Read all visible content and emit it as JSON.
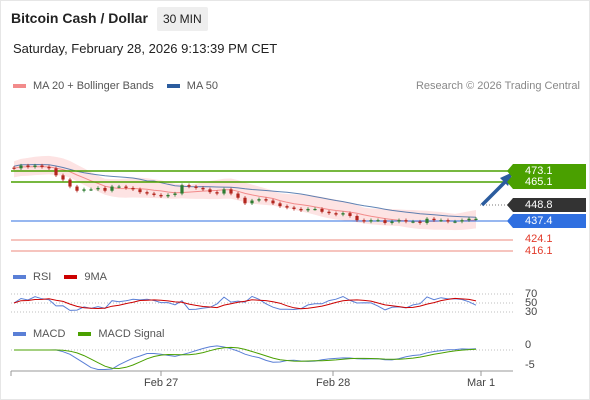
{
  "header": {
    "title": "Bitcoin Cash / Dollar",
    "interval": "30 MIN",
    "datetime": "Saturday, February 28, 2026 9:13:39 PM CET"
  },
  "legend_main": [
    {
      "label": "MA 20 + Bollinger Bands",
      "color": "#f28b8b"
    },
    {
      "label": "MA 50",
      "color": "#2b5c9e"
    }
  ],
  "copyright": "Research © 2026 Trading Central",
  "levels": {
    "resistance_1": {
      "value": "473.1",
      "color": "#4aa000"
    },
    "resistance_2": {
      "value": "465.1",
      "color": "#4aa000"
    },
    "current": {
      "value": "448.8",
      "color": "#333333"
    },
    "pivot": {
      "value": "437.4",
      "color": "#2f6fe0"
    },
    "support_1": {
      "value": "424.1",
      "color": "#e23a2a"
    },
    "support_2": {
      "value": "416.1",
      "color": "#e23a2a"
    }
  },
  "rsi_panel": {
    "legend": [
      {
        "label": "RSI",
        "color": "#5a7fd6"
      },
      {
        "label": "9MA",
        "color": "#cc0000"
      }
    ],
    "ticks": [
      "70",
      "50",
      "30"
    ]
  },
  "macd_panel": {
    "legend": [
      {
        "label": "MACD",
        "color": "#5a7fd6"
      },
      {
        "label": "MACD Signal",
        "color": "#4aa000"
      }
    ],
    "ticks": [
      "0",
      "-5"
    ]
  },
  "x_axis": [
    "Feb 27",
    "Feb 28",
    "Mar 1"
  ],
  "chart_data": {
    "type": "candlestick",
    "series": [
      {
        "name": "MA 20 + Bollinger Bands"
      },
      {
        "name": "MA 50"
      }
    ],
    "close_approx": [
      475,
      477,
      476,
      477,
      476,
      475,
      470,
      467,
      462,
      459,
      460,
      460,
      461,
      459,
      462,
      462,
      461,
      460,
      458,
      457,
      456,
      455,
      456,
      457,
      463,
      462,
      461,
      460,
      458,
      457,
      460,
      457,
      454,
      450,
      452,
      453,
      452,
      450,
      448,
      447,
      446,
      445,
      446,
      446,
      444,
      443,
      442,
      443,
      441,
      438,
      437,
      438,
      438,
      436,
      437,
      438,
      437,
      437,
      436,
      439,
      438,
      438,
      437,
      437,
      438,
      439,
      439
    ]
  }
}
